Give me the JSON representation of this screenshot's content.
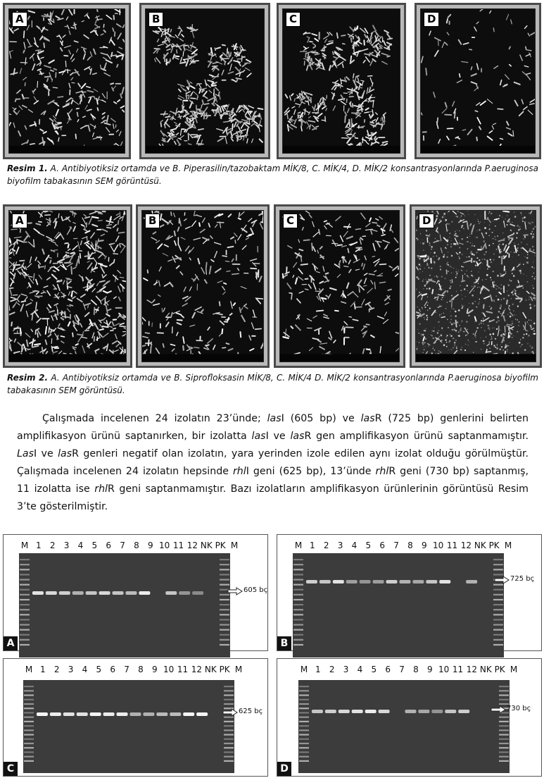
{
  "figure1": {
    "panels": [
      {
        "letter": "A",
        "style": "dense-rods"
      },
      {
        "letter": "B",
        "style": "clumps"
      },
      {
        "letter": "C",
        "style": "aggregates"
      },
      {
        "letter": "D",
        "style": "sparse"
      }
    ],
    "caption": {
      "lead": "Resim 1.",
      "text": " A. Antibiyotiksiz ortamda ve B. Piperasilin/tazobaktam MİK/8, C. MİK/4, D. MİK/2 konsantrasyonlarında P.aeruginosa biyofilm tabakasının SEM görüntüsü."
    }
  },
  "figure2": {
    "panels": [
      {
        "letter": "A",
        "style": "dense-mat"
      },
      {
        "letter": "B",
        "style": "scattered"
      },
      {
        "letter": "C",
        "style": "scattered"
      },
      {
        "letter": "D",
        "style": "grainy"
      }
    ],
    "caption": {
      "lead": "Resim 2.",
      "text": " A. Antibiyotiksiz ortamda ve B. Siprofloksasin MİK/8, C. MİK/4 D. MİK/2 konsantrasyonlarında P.aeruginosa biyofilm tabakasının SEM görüntüsü."
    }
  },
  "body": {
    "p1": "Çalışmada incelenen 24 izolatın 23’ünde; ",
    "g1": "las",
    "p2": "I (605 bp) ve ",
    "g2": "las",
    "p3": "R (725 bp) genlerini belirten amplifikasyon ürünü saptanırken, bir izolatta ",
    "g3": "las",
    "p4": "I ve ",
    "g4": "las",
    "p5": "R gen amplifikasyon ürünü saptanmamıştır. ",
    "g5": "Las",
    "p6": "I ve ",
    "g6": "las",
    "p7": "R genleri negatif olan izolatın, yara yerinden izole edilen aynı izolat olduğu görülmüştür. Çalışmada incelenen 24 izolatın hepsinde ",
    "g7": "rhl",
    "p8": "I geni (625 bp), 13’ünde ",
    "g8": "rhl",
    "p9": "R geni (730 bp) saptanmış, 11 izolatta ise ",
    "g9": "rhl",
    "p10": "R geni saptanmamıştır. Bazı izolatların amplifikasyon ürünlerinin görüntüsü Resim 3’te gösterilmiştir."
  },
  "gels": [
    {
      "letter": "A",
      "marker": "605 bç",
      "bands": [
        0,
        0.85,
        0.8,
        0.75,
        0.6,
        0.7,
        0.8,
        0.7,
        0.65,
        0.9,
        0,
        0.7,
        0.45,
        0.4,
        0,
        0.9
      ]
    },
    {
      "letter": "B",
      "marker": "725 bç",
      "bands": [
        0,
        0.75,
        0.7,
        0.85,
        0.5,
        0.45,
        0.5,
        0.75,
        0.6,
        0.55,
        0.7,
        0.85,
        0,
        0.6,
        0,
        0.95
      ]
    },
    {
      "letter": "C",
      "marker": "625 bç",
      "bands": [
        0,
        0.95,
        0.9,
        0.85,
        0.85,
        0.95,
        0.9,
        0.9,
        0.6,
        0.6,
        0.65,
        0.65,
        0.95,
        0.95,
        0,
        0.9
      ]
    },
    {
      "letter": "D",
      "marker": "730 bç",
      "bands": [
        0,
        0.7,
        0.75,
        0.8,
        0.85,
        0.9,
        0.8,
        0,
        0.6,
        0.55,
        0.45,
        0.7,
        0.75,
        0,
        0,
        0.85
      ]
    }
  ],
  "gel_lanes": [
    "M",
    "1",
    "2",
    "3",
    "4",
    "5",
    "6",
    "7",
    "8",
    "9",
    "10",
    "11",
    "12",
    "NK",
    "PK",
    "M"
  ]
}
